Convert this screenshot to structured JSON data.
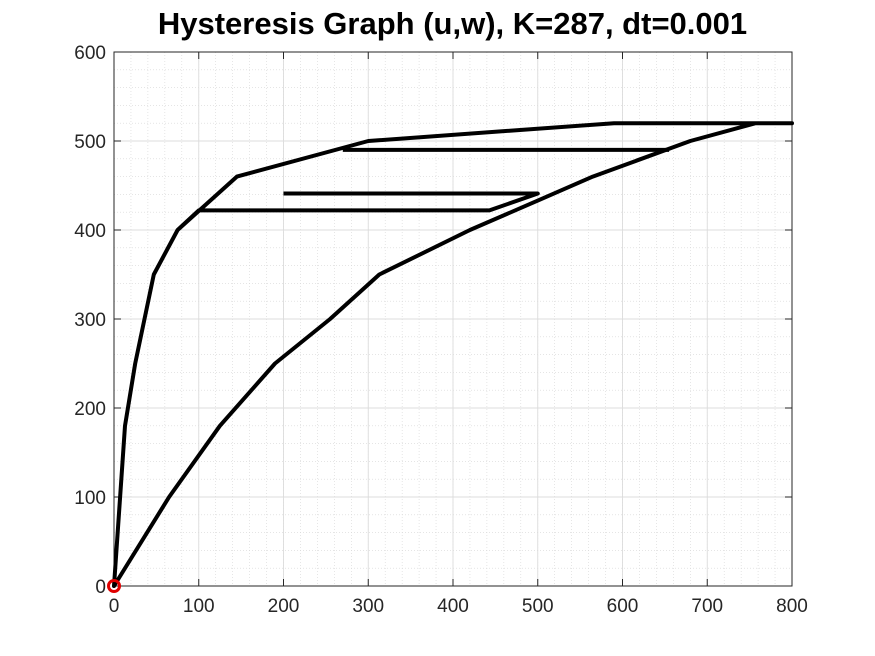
{
  "chart_data": {
    "type": "line",
    "title": "Hysteresis Graph (u,w), K=287, dt=0.001",
    "xlabel": "",
    "ylabel": "",
    "xlim": [
      0,
      800
    ],
    "ylim": [
      0,
      600
    ],
    "xticks": [
      "0",
      "100",
      "200",
      "300",
      "400",
      "500",
      "600",
      "700",
      "800"
    ],
    "yticks": [
      "0",
      "100",
      "200",
      "300",
      "400",
      "500",
      "600"
    ],
    "x_tick_values": [
      0,
      100,
      200,
      300,
      400,
      500,
      600,
      700,
      800
    ],
    "y_tick_values": [
      0,
      100,
      200,
      300,
      400,
      500,
      600
    ],
    "grid": "on",
    "minor_grid": "on",
    "line_color": "#000000",
    "series": [
      {
        "values": [
          [
            0,
            0
          ],
          [
            65,
            100
          ],
          [
            125,
            180
          ],
          [
            190,
            250
          ],
          [
            255,
            300
          ],
          [
            313,
            350
          ],
          [
            420,
            400
          ],
          [
            500,
            433
          ],
          [
            565,
            460
          ],
          [
            680,
            500
          ],
          [
            757,
            520
          ],
          [
            800,
            520
          ],
          [
            757,
            520
          ],
          [
            590,
            520
          ],
          [
            300,
            500
          ],
          [
            145,
            460
          ],
          [
            75,
            400
          ],
          [
            47,
            350
          ],
          [
            25,
            250
          ],
          [
            13,
            180
          ],
          [
            0,
            0
          ],
          [
            0,
            0
          ],
          [
            13,
            180
          ],
          [
            25,
            250
          ],
          [
            47,
            350
          ],
          [
            75,
            400
          ],
          [
            100,
            422
          ],
          [
            443,
            422
          ],
          [
            500,
            441
          ],
          [
            200,
            441
          ]
        ]
      },
      {
        "values": [
          [
            270,
            490
          ],
          [
            655,
            490
          ]
        ]
      }
    ],
    "marker": {
      "x": 0,
      "y": 0,
      "shape": "circle",
      "color": "#e00000"
    }
  }
}
